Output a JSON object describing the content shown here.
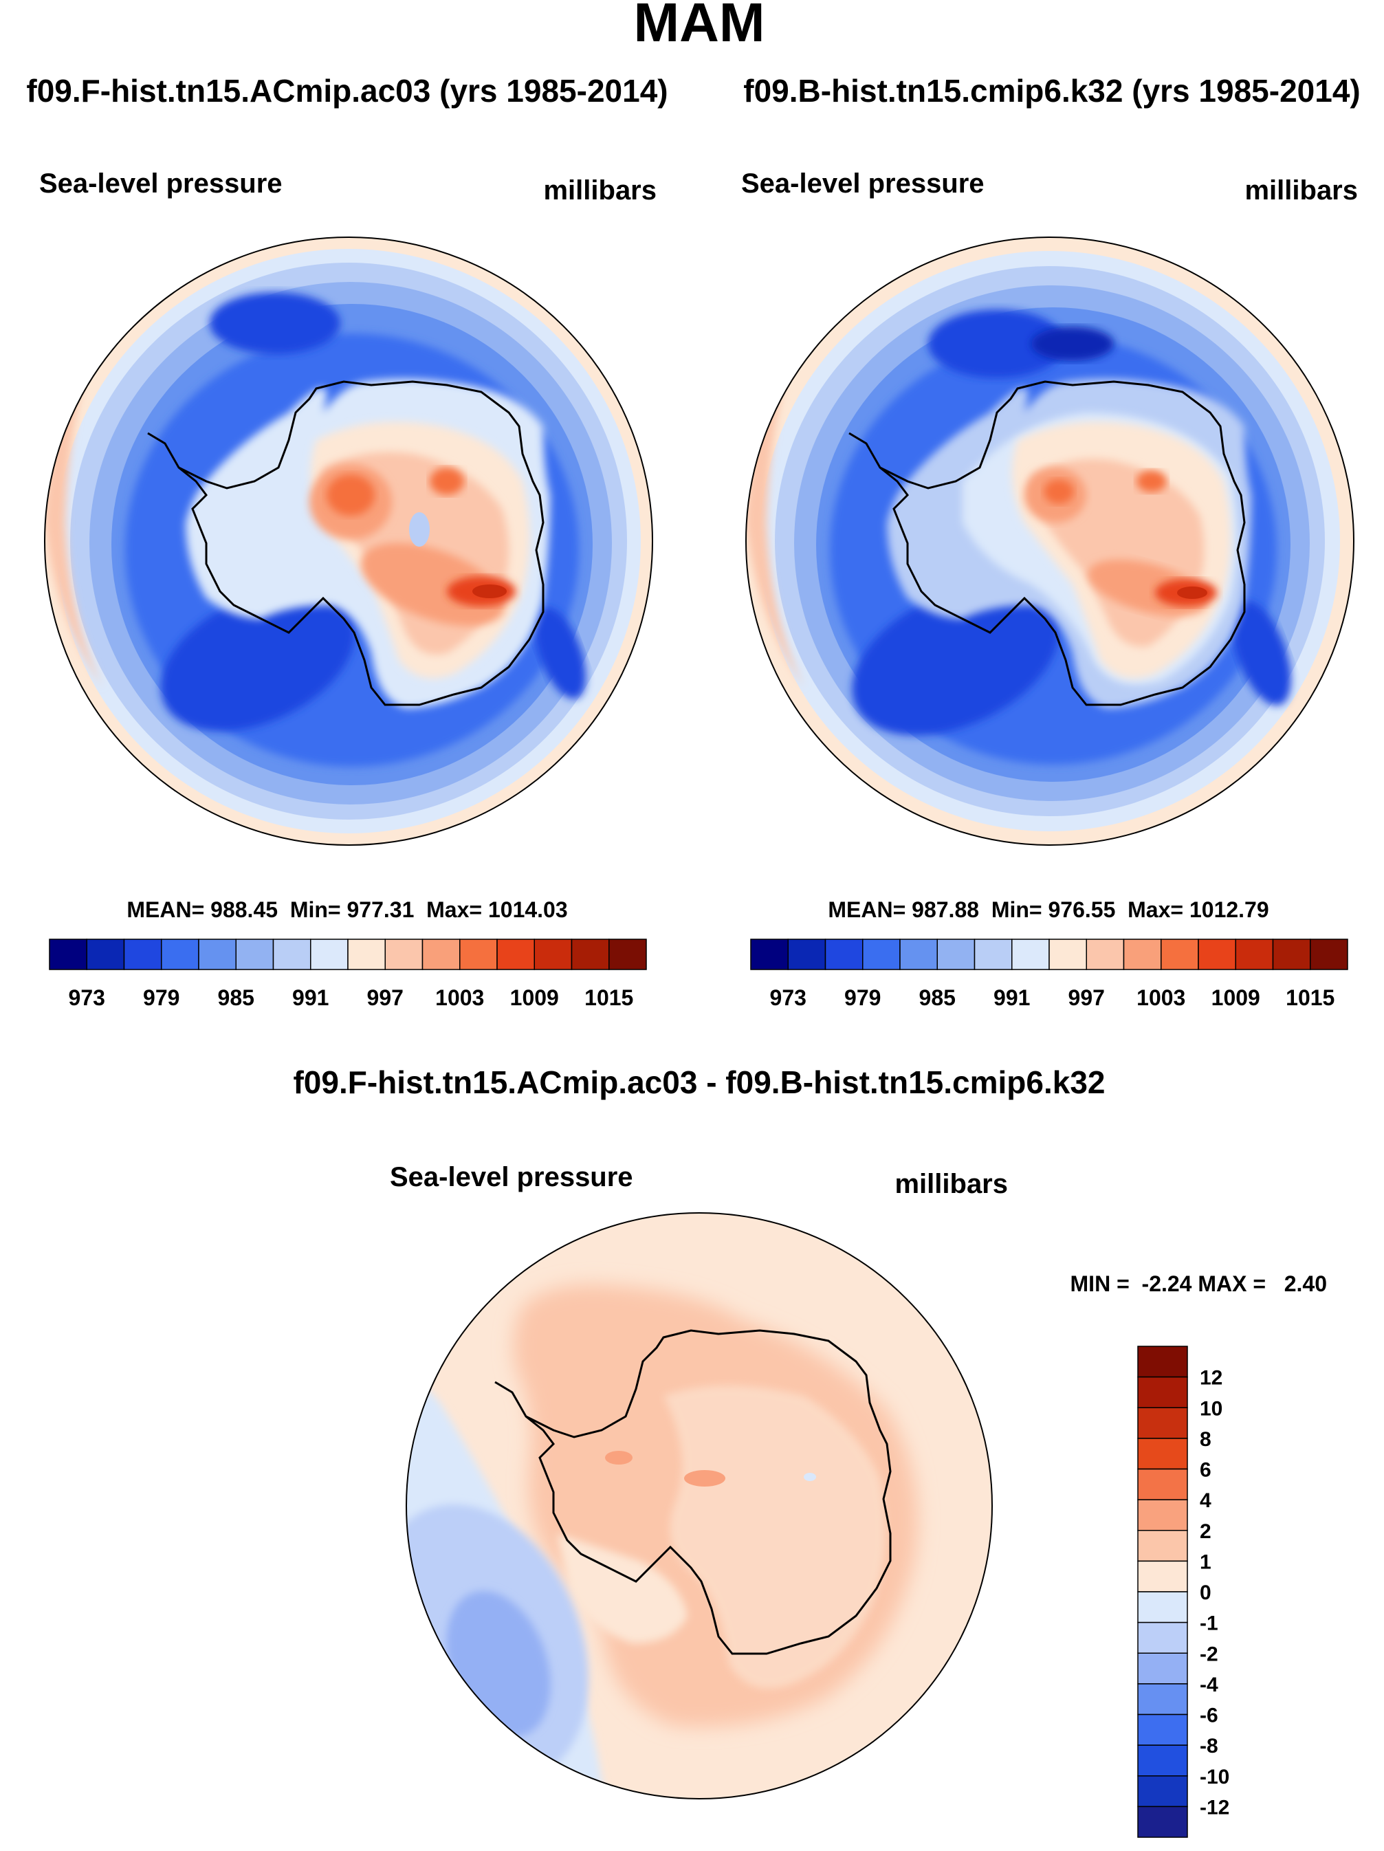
{
  "page": {
    "season": "MAM",
    "diff_title": "f09.F-hist.tn15.ACmip.ac03 - f09.B-hist.tn15.cmip6.k32"
  },
  "colors": {
    "abs_palette": [
      "#00007f",
      "#0a27b4",
      "#1f47e0",
      "#3a6ef0",
      "#6592f0",
      "#92b2f2",
      "#b9cef6",
      "#dce9fb",
      "#fde8d6",
      "#fbc6ac",
      "#f9a07a",
      "#f5703e",
      "#e8431a",
      "#ca2c0c",
      "#a61d05",
      "#7a0e03"
    ],
    "diff_palette": [
      "#1a208e",
      "#1438c0",
      "#2150e0",
      "#3d6ef0",
      "#6690f2",
      "#94b0f4",
      "#bccff8",
      "#dae8fb",
      "#fde7d6",
      "#fbc6aa",
      "#f9a27e",
      "#f37347",
      "#e64a1b",
      "#c8300f",
      "#a81b06",
      "#7f0d02"
    ],
    "land_outline": "#000000"
  },
  "chart_data": [
    {
      "type": "heatmap",
      "projection": "south-polar-stereographic",
      "title": "f09.F-hist.tn15.ACmip.ac03 (yrs 1985-2014)",
      "left_label": "Sea-level pressure",
      "right_label": "millibars",
      "stats": {
        "mean": 988.45,
        "min": 977.31,
        "max": 1014.03
      },
      "stats_text": "MEAN= 988.45  Min= 977.31  Max= 1014.03",
      "colorbar": {
        "levels": [
          973,
          976,
          979,
          982,
          985,
          988,
          991,
          994,
          997,
          1000,
          1003,
          1006,
          1009,
          1012,
          1015
        ],
        "tick_labels": [
          "973",
          "979",
          "985",
          "991",
          "997",
          "1003",
          "1009",
          "1015"
        ]
      }
    },
    {
      "type": "heatmap",
      "projection": "south-polar-stereographic",
      "title": "f09.B-hist.tn15.cmip6.k32 (yrs 1985-2014)",
      "left_label": "Sea-level pressure",
      "right_label": "millibars",
      "stats": {
        "mean": 987.88,
        "min": 976.55,
        "max": 1012.79
      },
      "stats_text": "MEAN= 987.88  Min= 976.55  Max= 1012.79",
      "colorbar": {
        "levels": [
          973,
          976,
          979,
          982,
          985,
          988,
          991,
          994,
          997,
          1000,
          1003,
          1006,
          1009,
          1012,
          1015
        ],
        "tick_labels": [
          "973",
          "979",
          "985",
          "991",
          "997",
          "1003",
          "1009",
          "1015"
        ]
      }
    },
    {
      "type": "heatmap",
      "projection": "south-polar-stereographic",
      "title": "f09.F-hist.tn15.ACmip.ac03 - f09.B-hist.tn15.cmip6.k32",
      "left_label": "Sea-level pressure",
      "right_label": "millibars",
      "stats": {
        "min": -2.24,
        "max": 2.4
      },
      "stats_text": "MIN =  -2.24 MAX =   2.40",
      "colorbar": {
        "orientation": "vertical",
        "levels": [
          -12,
          -10,
          -8,
          -6,
          -4,
          -2,
          -1,
          0,
          1,
          2,
          4,
          6,
          8,
          10,
          12
        ],
        "tick_labels": [
          "12",
          "10",
          "8",
          "6",
          "4",
          "2",
          "1",
          "0",
          "-1",
          "-2",
          "-4",
          "-6",
          "-8",
          "-10",
          "-12"
        ]
      }
    }
  ]
}
